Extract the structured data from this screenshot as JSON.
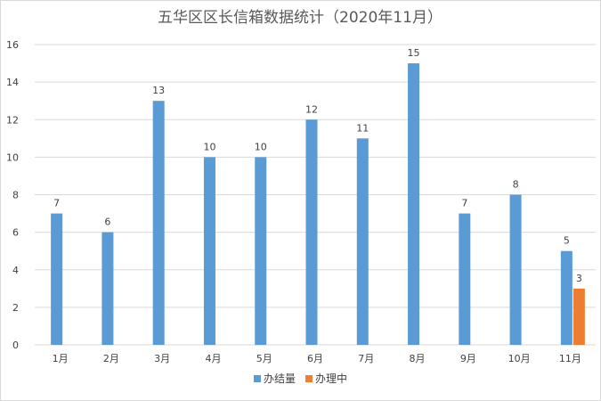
{
  "chart_data": {
    "type": "bar",
    "title": "五华区区长信箱数据统计（2020年11月）",
    "categories": [
      "1月",
      "2月",
      "3月",
      "4月",
      "5月",
      "6月",
      "7月",
      "8月",
      "9月",
      "10月",
      "11月"
    ],
    "series": [
      {
        "name": "办结量",
        "color": "#5B9BD5",
        "values": [
          7,
          6,
          13,
          10,
          10,
          12,
          11,
          15,
          7,
          8,
          5
        ]
      },
      {
        "name": "办理中",
        "color": "#ED7D31",
        "values": [
          null,
          null,
          null,
          null,
          null,
          null,
          null,
          null,
          null,
          null,
          3
        ]
      }
    ],
    "ylim": [
      0,
      16
    ],
    "yticks": [
      "0",
      "2",
      "4",
      "6",
      "8",
      "10",
      "12",
      "14",
      "16"
    ],
    "grid": true,
    "legend": "bottom"
  }
}
